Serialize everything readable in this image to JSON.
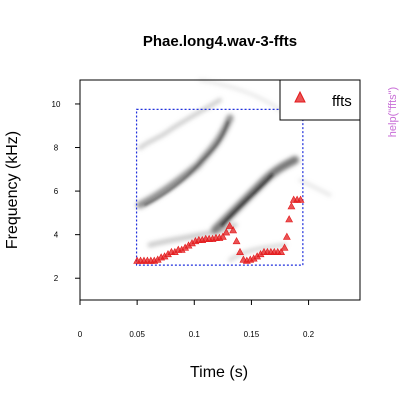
{
  "chart_data": {
    "type": "scatter",
    "title": "Phae.long4.wav-3-ffts",
    "xlabel": "Time (s)",
    "ylabel": "Frequency (kHz)",
    "xlim": [
      0,
      0.245
    ],
    "ylim": [
      1,
      11.1
    ],
    "xticks": [
      "0",
      "0.05",
      "0.1",
      "0.15",
      "0.2"
    ],
    "xtick_values": [
      0,
      0.05,
      0.1,
      0.15,
      0.2
    ],
    "yticks": [
      "2",
      "4",
      "6",
      "8",
      "10"
    ],
    "ytick_values": [
      2,
      4,
      6,
      8,
      10
    ],
    "legend": {
      "label": "ffts",
      "position": "top-right"
    },
    "side_note": "help(\"ffts\")",
    "selection_box": {
      "x": [
        0.0495,
        0.195
      ],
      "y": [
        2.6,
        9.75
      ]
    },
    "series": [
      {
        "name": "ffts",
        "color": "#e31a1c",
        "marker": "triangle",
        "points": [
          [
            0.05,
            2.8
          ],
          [
            0.053,
            2.8
          ],
          [
            0.056,
            2.8
          ],
          [
            0.059,
            2.8
          ],
          [
            0.062,
            2.8
          ],
          [
            0.065,
            2.8
          ],
          [
            0.068,
            2.85
          ],
          [
            0.071,
            2.95
          ],
          [
            0.074,
            3.0
          ],
          [
            0.077,
            3.1
          ],
          [
            0.08,
            3.2
          ],
          [
            0.083,
            3.2
          ],
          [
            0.086,
            3.3
          ],
          [
            0.089,
            3.3
          ],
          [
            0.092,
            3.4
          ],
          [
            0.095,
            3.5
          ],
          [
            0.098,
            3.6
          ],
          [
            0.101,
            3.7
          ],
          [
            0.104,
            3.75
          ],
          [
            0.107,
            3.75
          ],
          [
            0.11,
            3.8
          ],
          [
            0.113,
            3.8
          ],
          [
            0.116,
            3.8
          ],
          [
            0.119,
            3.85
          ],
          [
            0.122,
            3.85
          ],
          [
            0.125,
            3.9
          ],
          [
            0.128,
            4.1
          ],
          [
            0.131,
            4.4
          ],
          [
            0.134,
            4.2
          ],
          [
            0.137,
            3.7
          ],
          [
            0.14,
            3.2
          ],
          [
            0.143,
            2.85
          ],
          [
            0.146,
            2.8
          ],
          [
            0.149,
            2.85
          ],
          [
            0.152,
            2.9
          ],
          [
            0.155,
            3.0
          ],
          [
            0.158,
            3.1
          ],
          [
            0.161,
            3.2
          ],
          [
            0.164,
            3.2
          ],
          [
            0.167,
            3.2
          ],
          [
            0.17,
            3.2
          ],
          [
            0.173,
            3.2
          ],
          [
            0.176,
            3.2
          ],
          [
            0.179,
            3.4
          ],
          [
            0.181,
            3.9
          ],
          [
            0.183,
            4.7
          ],
          [
            0.185,
            5.3
          ],
          [
            0.187,
            5.6
          ],
          [
            0.19,
            5.6
          ],
          [
            0.193,
            5.6
          ]
        ]
      }
    ]
  }
}
